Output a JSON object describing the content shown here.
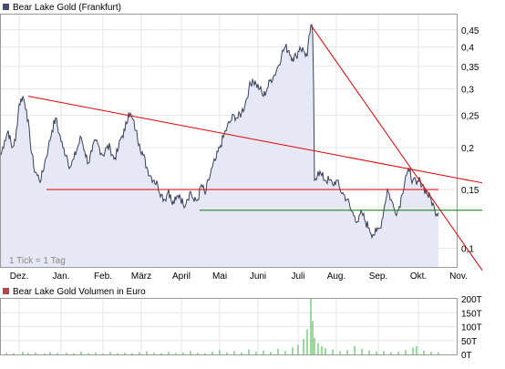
{
  "chart_data": [
    {
      "type": "line",
      "title": "Bear Lake Gold (Frankfurt)",
      "legend_color": "#4a4a6a",
      "line_color": "#3a3f5a",
      "fill_color": "#e6e8f6",
      "note": "1 Tick = 1 Tag",
      "y_scale": "log",
      "ylim": [
        0.088,
        0.5
      ],
      "y_ticks": [
        0.45,
        0.4,
        0.35,
        0.3,
        0.25,
        0.2,
        0.15,
        0.1
      ],
      "y_tick_labels": [
        "0,45",
        "0,4",
        "0,35",
        "0,3",
        "0,25",
        "0,2",
        "0,15",
        "0,1"
      ],
      "xlim": [
        0,
        250
      ],
      "months": [
        {
          "label": "Dez.",
          "x": 10
        },
        {
          "label": "Jan.",
          "x": 33
        },
        {
          "label": "Feb.",
          "x": 56
        },
        {
          "label": "März",
          "x": 77
        },
        {
          "label": "April",
          "x": 99
        },
        {
          "label": "Mai",
          "x": 120
        },
        {
          "label": "Juni",
          "x": 141
        },
        {
          "label": "Juli",
          "x": 163
        },
        {
          "label": "Aug.",
          "x": 184
        },
        {
          "label": "Sep.",
          "x": 207
        },
        {
          "label": "Okt.",
          "x": 229
        },
        {
          "label": "Nov.",
          "x": 251
        }
      ],
      "anchors": [
        [
          0,
          0.19
        ],
        [
          2,
          0.21
        ],
        [
          4,
          0.225
        ],
        [
          6,
          0.2
        ],
        [
          8,
          0.21
        ],
        [
          10,
          0.27
        ],
        [
          12,
          0.285
        ],
        [
          14,
          0.26
        ],
        [
          16,
          0.21
        ],
        [
          18,
          0.175
        ],
        [
          20,
          0.165
        ],
        [
          22,
          0.16
        ],
        [
          24,
          0.18
        ],
        [
          26,
          0.2
        ],
        [
          28,
          0.225
        ],
        [
          30,
          0.245
        ],
        [
          32,
          0.22
        ],
        [
          34,
          0.2
        ],
        [
          36,
          0.19
        ],
        [
          38,
          0.175
        ],
        [
          40,
          0.185
        ],
        [
          42,
          0.2
        ],
        [
          44,
          0.215
        ],
        [
          46,
          0.195
        ],
        [
          48,
          0.18
        ],
        [
          50,
          0.195
        ],
        [
          52,
          0.21
        ],
        [
          54,
          0.2
        ],
        [
          56,
          0.19
        ],
        [
          58,
          0.2
        ],
        [
          60,
          0.2
        ],
        [
          62,
          0.185
        ],
        [
          64,
          0.195
        ],
        [
          66,
          0.215
        ],
        [
          68,
          0.225
        ],
        [
          70,
          0.255
        ],
        [
          72,
          0.245
        ],
        [
          74,
          0.225
        ],
        [
          76,
          0.205
        ],
        [
          78,
          0.19
        ],
        [
          80,
          0.175
        ],
        [
          82,
          0.165
        ],
        [
          84,
          0.16
        ],
        [
          86,
          0.155
        ],
        [
          88,
          0.145
        ],
        [
          90,
          0.14
        ],
        [
          92,
          0.15
        ],
        [
          94,
          0.135
        ],
        [
          96,
          0.14
        ],
        [
          98,
          0.145
        ],
        [
          100,
          0.135
        ],
        [
          102,
          0.14
        ],
        [
          104,
          0.148
        ],
        [
          106,
          0.138
        ],
        [
          108,
          0.14
        ],
        [
          110,
          0.155
        ],
        [
          112,
          0.145
        ],
        [
          114,
          0.16
        ],
        [
          116,
          0.175
        ],
        [
          118,
          0.185
        ],
        [
          120,
          0.2
        ],
        [
          122,
          0.215
        ],
        [
          124,
          0.23
        ],
        [
          126,
          0.24
        ],
        [
          128,
          0.25
        ],
        [
          130,
          0.245
        ],
        [
          132,
          0.255
        ],
        [
          134,
          0.27
        ],
        [
          136,
          0.3
        ],
        [
          138,
          0.32
        ],
        [
          140,
          0.31
        ],
        [
          142,
          0.3
        ],
        [
          144,
          0.285
        ],
        [
          146,
          0.3
        ],
        [
          148,
          0.32
        ],
        [
          150,
          0.33
        ],
        [
          152,
          0.35
        ],
        [
          154,
          0.38
        ],
        [
          156,
          0.4
        ],
        [
          158,
          0.39
        ],
        [
          160,
          0.37
        ],
        [
          162,
          0.375
        ],
        [
          164,
          0.4
        ],
        [
          166,
          0.39
        ],
        [
          168,
          0.375
        ],
        [
          170,
          0.465
        ],
        [
          171,
          0.44
        ],
        [
          172,
          0.16
        ],
        [
          174,
          0.17
        ],
        [
          176,
          0.165
        ],
        [
          178,
          0.16
        ],
        [
          180,
          0.16
        ],
        [
          182,
          0.155
        ],
        [
          184,
          0.16
        ],
        [
          186,
          0.15
        ],
        [
          188,
          0.145
        ],
        [
          190,
          0.14
        ],
        [
          192,
          0.13
        ],
        [
          194,
          0.125
        ],
        [
          196,
          0.12
        ],
        [
          198,
          0.128
        ],
        [
          200,
          0.12
        ],
        [
          202,
          0.115
        ],
        [
          204,
          0.11
        ],
        [
          206,
          0.112
        ],
        [
          208,
          0.115
        ],
        [
          210,
          0.13
        ],
        [
          212,
          0.15
        ],
        [
          214,
          0.14
        ],
        [
          216,
          0.13
        ],
        [
          218,
          0.13
        ],
        [
          220,
          0.145
        ],
        [
          222,
          0.165
        ],
        [
          224,
          0.17
        ],
        [
          226,
          0.16
        ],
        [
          228,
          0.155
        ],
        [
          230,
          0.16
        ],
        [
          232,
          0.152
        ],
        [
          234,
          0.145
        ],
        [
          236,
          0.14
        ],
        [
          238,
          0.13
        ],
        [
          240,
          0.128
        ]
      ],
      "trendlines": [
        {
          "name": "upper-resistance",
          "color": "#e00000",
          "from": [
            15,
            0.285
          ],
          "to": [
            264,
            0.157
          ]
        },
        {
          "name": "steep-resistance",
          "color": "#e00000",
          "from": [
            170,
            0.465
          ],
          "to": [
            264,
            0.086
          ]
        },
        {
          "name": "horizontal-red",
          "color": "#e00000",
          "from": [
            25,
            0.15
          ],
          "to": [
            240,
            0.15
          ]
        },
        {
          "name": "horizontal-green",
          "color": "#008000",
          "from": [
            109,
            0.13
          ],
          "to": [
            264,
            0.13
          ]
        }
      ]
    },
    {
      "type": "bar",
      "title": "Bear Lake Gold Volumen in Euro",
      "legend_color": "#b04848",
      "ylim": [
        0,
        200000
      ],
      "y_ticks": [
        200000,
        150000,
        100000,
        50000,
        0
      ],
      "y_tick_labels": [
        "200T",
        "150T",
        "100T",
        "50T",
        "0T"
      ],
      "bars": [
        [
          3,
          6000
        ],
        [
          7,
          4000
        ],
        [
          12,
          9000
        ],
        [
          15,
          5000
        ],
        [
          19,
          7000
        ],
        [
          24,
          3000
        ],
        [
          27,
          8000
        ],
        [
          31,
          5000
        ],
        [
          36,
          6000
        ],
        [
          40,
          4000
        ],
        [
          44,
          10000
        ],
        [
          48,
          5000
        ],
        [
          52,
          7000
        ],
        [
          56,
          3000
        ],
        [
          60,
          9000
        ],
        [
          64,
          5000
        ],
        [
          68,
          6000
        ],
        [
          72,
          4000
        ],
        [
          76,
          8000
        ],
        [
          80,
          11000
        ],
        [
          84,
          6000
        ],
        [
          88,
          4000
        ],
        [
          92,
          9000
        ],
        [
          96,
          5000
        ],
        [
          100,
          7000
        ],
        [
          104,
          12000
        ],
        [
          108,
          6000
        ],
        [
          112,
          4000
        ],
        [
          116,
          10000
        ],
        [
          120,
          15000
        ],
        [
          124,
          8000
        ],
        [
          128,
          12000
        ],
        [
          132,
          7000
        ],
        [
          136,
          18000
        ],
        [
          140,
          10000
        ],
        [
          144,
          14000
        ],
        [
          148,
          9000
        ],
        [
          152,
          20000
        ],
        [
          156,
          12000
        ],
        [
          160,
          25000
        ],
        [
          163,
          35000
        ],
        [
          166,
          55000
        ],
        [
          168,
          90000
        ],
        [
          170,
          200000
        ],
        [
          171,
          120000
        ],
        [
          172,
          60000
        ],
        [
          174,
          40000
        ],
        [
          176,
          30000
        ],
        [
          178,
          22000
        ],
        [
          182,
          18000
        ],
        [
          186,
          12000
        ],
        [
          190,
          15000
        ],
        [
          194,
          30000
        ],
        [
          198,
          20000
        ],
        [
          202,
          14000
        ],
        [
          206,
          10000
        ],
        [
          210,
          12000
        ],
        [
          214,
          8000
        ],
        [
          218,
          10000
        ],
        [
          222,
          16000
        ],
        [
          226,
          25000
        ],
        [
          228,
          30000
        ],
        [
          232,
          14000
        ],
        [
          236,
          10000
        ],
        [
          240,
          8000
        ]
      ]
    }
  ]
}
